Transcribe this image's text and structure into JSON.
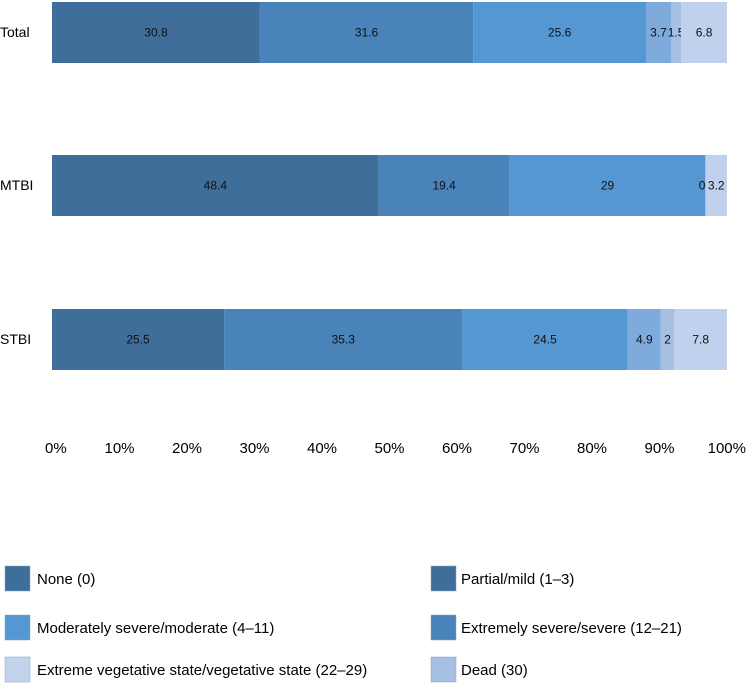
{
  "chart_data": {
    "type": "bar",
    "orientation": "horizontal",
    "stacked": true,
    "percent_stacked": true,
    "title": "",
    "xlabel": "",
    "ylabel": "",
    "xlim": [
      0,
      100
    ],
    "grid": false,
    "legend_position": "bottom",
    "categories": [
      "Total",
      "MTBI",
      "STBI"
    ],
    "x_ticks": [
      "0%",
      "10%",
      "20%",
      "30%",
      "40%",
      "50%",
      "60%",
      "70%",
      "80%",
      "90%",
      "100%"
    ],
    "series": [
      {
        "name": "None (0)",
        "values": [
          30.8,
          48.4,
          25.5
        ],
        "color": "#3F6E9B",
        "labels": [
          "30.8",
          "48.4",
          "25.5"
        ]
      },
      {
        "name": "Partial/mild (1–3)",
        "values": [
          31.6,
          19.4,
          35.3
        ],
        "color": "#4A83BA",
        "labels": [
          "31.6",
          "19.4",
          "35.3"
        ]
      },
      {
        "name": "Moderately severe/moderate (4–11)",
        "values": [
          25.6,
          29,
          24.5
        ],
        "color": "#5597D3",
        "labels": [
          "25.6",
          "29",
          "24.5"
        ]
      },
      {
        "name": "Extremely severe/severe (12–21)",
        "values": [
          3.7,
          0,
          4.9
        ],
        "color": "#7FAADC",
        "labels": [
          "3.7",
          "0",
          "4.9"
        ]
      },
      {
        "name": "Extreme vegetative state/vegetative state (22–29)",
        "values": [
          1.5,
          0,
          2
        ],
        "color": "#A6C0E4",
        "labels": [
          "1.5",
          "",
          "2"
        ]
      },
      {
        "name": "Dead (30)",
        "values": [
          6.8,
          3.2,
          7.8
        ],
        "color": "#BFD1EC",
        "labels": [
          "6.8",
          "3.2",
          "7.8"
        ]
      }
    ],
    "legend": [
      {
        "label": "None (0)",
        "color": "#3F6E9B"
      },
      {
        "label": "Partial/mild (1–3)",
        "color": "#3F6E9B"
      },
      {
        "label": "Moderately severe/moderate (4–11)",
        "color": "#5597D3"
      },
      {
        "label": "Extremely severe/severe (12–21)",
        "color": "#4A83BA"
      },
      {
        "label": "Extreme vegetative state/vegetative state (22–29)",
        "color": "#C2D3EC"
      },
      {
        "label": "Dead (30)",
        "color": "#A6C0E4"
      }
    ]
  }
}
